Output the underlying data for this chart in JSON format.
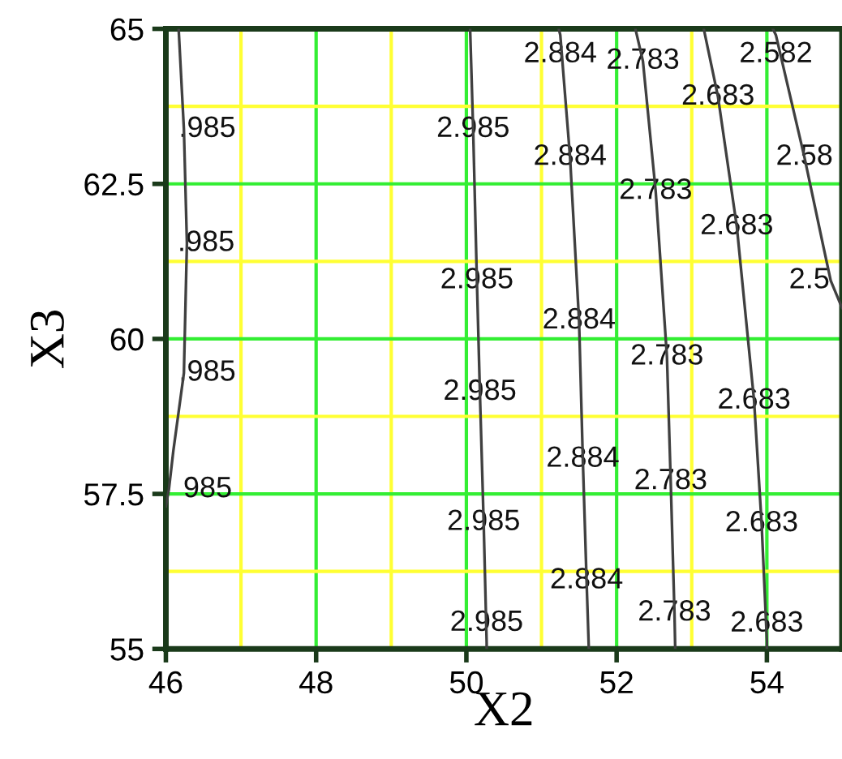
{
  "chart_data": {
    "type": "line",
    "xlabel": "X2",
    "ylabel": "X3",
    "xlim": [
      46,
      55
    ],
    "ylim": [
      55,
      65
    ],
    "xticks": [
      46,
      {
        "value": 47,
        "label": null
      },
      48,
      {
        "value": 49,
        "label": null
      },
      50,
      {
        "value": 51,
        "label": null
      },
      52,
      {
        "value": 53,
        "label": null
      },
      54
    ],
    "yticks": [
      55,
      {
        "value": 56.25,
        "label": null
      },
      57.5,
      {
        "value": 58.75,
        "label": null
      },
      60,
      {
        "value": 61.25,
        "label": null
      },
      62.5,
      {
        "value": 63.75,
        "label": null
      },
      65
    ],
    "grid": true,
    "marker": "none",
    "line_style": "solid",
    "series": [
      {
        "color": "#404040",
        "x": [
          46.17,
          46.24,
          46.28,
          46.24,
          46.1,
          46.04,
          46.0
        ],
        "values": [
          65,
          63.38,
          61.54,
          59.45,
          58.2,
          57.57,
          57.3
        ]
      },
      {
        "color": "#404040",
        "x": [
          50.05,
          50.09,
          50.14,
          50.18,
          50.23,
          50.27,
          50.27
        ],
        "values": [
          65,
          63.38,
          60.94,
          59.14,
          57.04,
          55.1,
          55
        ]
      },
      {
        "color": "#404040",
        "x": [
          51.23,
          51.25,
          51.38,
          51.5,
          51.55,
          51.6,
          51.63
        ],
        "values": [
          65,
          64.9,
          62.93,
          60.29,
          58.06,
          56.1,
          55
        ]
      },
      {
        "color": "#404040",
        "x": [
          52.25,
          52.35,
          52.52,
          52.67,
          52.72,
          52.77,
          52.78
        ],
        "values": [
          65,
          64.48,
          62.38,
          59.71,
          57.7,
          55.58,
          55
        ]
      },
      {
        "color": "#404040",
        "x": [
          53.16,
          53.35,
          53.6,
          53.83,
          53.93,
          54.0,
          54.0
        ],
        "values": [
          65,
          63.9,
          61.81,
          59.0,
          57.02,
          55.13,
          55
        ]
      },
      {
        "color": "#404040",
        "x": [
          54.08,
          54.12,
          54.5,
          54.75,
          54.85,
          55.0
        ],
        "values": [
          65,
          64.9,
          62.93,
          61.5,
          60.94,
          60.5
        ]
      }
    ],
    "annotations": [
      {
        "text": ".985",
        "x": 46.24,
        "y": 63.38
      },
      {
        "text": ".985",
        "x": 46.28,
        "y": 61.54
      },
      {
        "text": ".985",
        "x": 46.24,
        "y": 59.45
      },
      {
        "text": "985",
        "x": 46.04,
        "y": 57.57
      },
      {
        "text": "2.985",
        "x": 50.09,
        "y": 63.38
      },
      {
        "text": "2.985",
        "x": 50.14,
        "y": 60.94
      },
      {
        "text": "2.985",
        "x": 50.18,
        "y": 59.14
      },
      {
        "text": "2.985",
        "x": 50.23,
        "y": 57.04
      },
      {
        "text": "2.985",
        "x": 50.27,
        "y": 55.1
      },
      {
        "text": "2.884",
        "x": 51.25,
        "y": 64.9
      },
      {
        "text": "2.884",
        "x": 51.38,
        "y": 62.93
      },
      {
        "text": "2.884",
        "x": 51.5,
        "y": 60.29
      },
      {
        "text": "2.884",
        "x": 51.55,
        "y": 58.06
      },
      {
        "text": "2.884",
        "x": 51.6,
        "y": 56.1
      },
      {
        "text": "2.783",
        "x": 52.35,
        "y": 64.48
      },
      {
        "text": "2.783",
        "x": 52.52,
        "y": 62.38
      },
      {
        "text": "2.783",
        "x": 52.67,
        "y": 59.71
      },
      {
        "text": "2.783",
        "x": 52.72,
        "y": 57.7
      },
      {
        "text": "2.783",
        "x": 52.77,
        "y": 55.58
      },
      {
        "text": "2.683",
        "x": 53.35,
        "y": 63.9
      },
      {
        "text": "2.683",
        "x": 53.6,
        "y": 61.81
      },
      {
        "text": "2.683",
        "x": 53.83,
        "y": 59.0
      },
      {
        "text": "2.683",
        "x": 53.93,
        "y": 57.02
      },
      {
        "text": "2.683",
        "x": 54.0,
        "y": 55.13
      },
      {
        "text": "2.582",
        "x": 54.12,
        "y": 64.9
      },
      {
        "text": "2.58",
        "x": 54.5,
        "y": 62.93
      },
      {
        "text": "2.5",
        "x": 54.85,
        "y": 60.94
      }
    ]
  }
}
